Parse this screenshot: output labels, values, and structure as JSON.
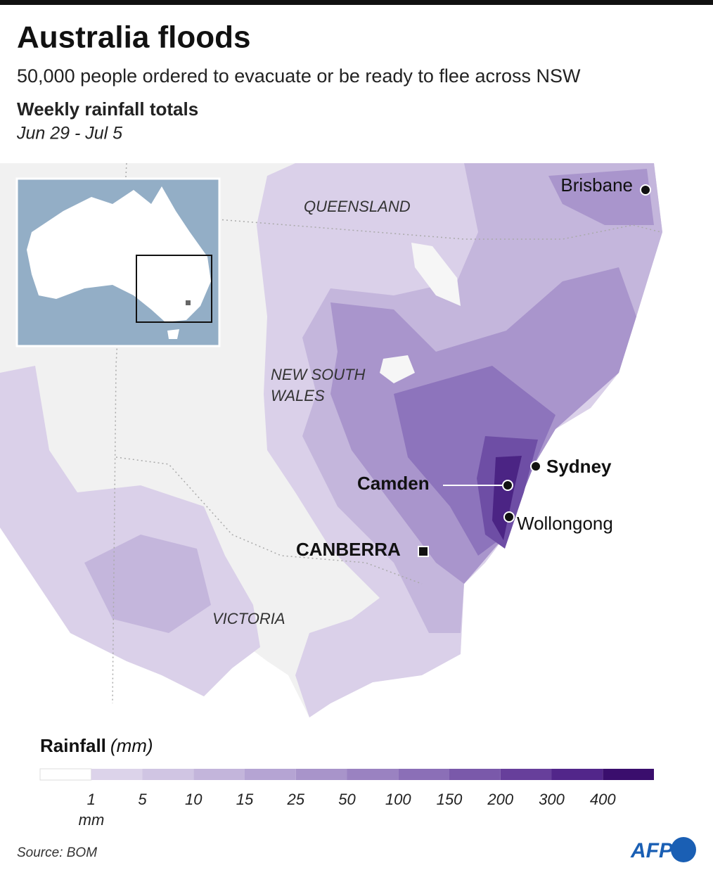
{
  "header": {
    "title": "Australia floods",
    "subtitle": "50,000 people ordered to evacuate or be ready to flee across NSW",
    "heading": "Weekly rainfall totals",
    "period": "Jun 29 - Jul 5"
  },
  "map": {
    "regions": [
      "QUEENSLAND",
      "NEW SOUTH",
      "WALES",
      "VICTORIA"
    ],
    "places": [
      "Brisbane",
      "Sydney",
      "Camden",
      "Wollongong",
      "CANBERRA"
    ]
  },
  "legend": {
    "title": "Rainfall",
    "unit": "(mm)",
    "ticks": [
      1,
      5,
      10,
      15,
      25,
      50,
      100,
      150,
      200,
      300,
      400
    ],
    "tick_unit": "mm",
    "colors": [
      "#ffffff",
      "#dcd3ea",
      "#d0c5e3",
      "#c3b5db",
      "#b5a4d3",
      "#a894ca",
      "#9a82c1",
      "#8b6fb7",
      "#7a59aa",
      "#673f9b",
      "#52268a",
      "#3a0e6d"
    ]
  },
  "footer": {
    "source": "Source: BOM",
    "logo": "AFP"
  }
}
